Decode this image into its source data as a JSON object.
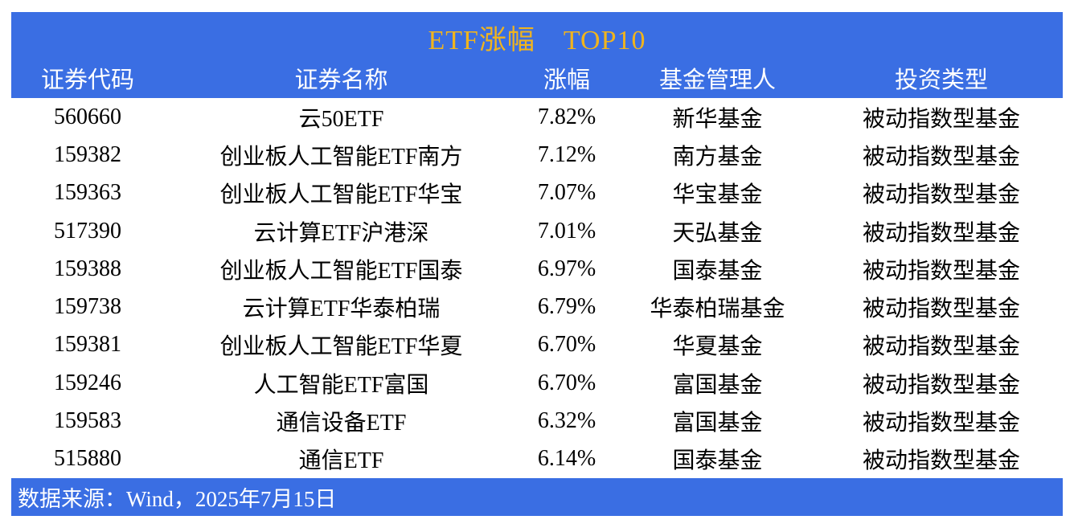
{
  "chart_data": {
    "type": "table",
    "title": "ETF涨幅　TOP10",
    "columns": [
      "证券代码",
      "证券名称",
      "涨幅",
      "基金管理人",
      "投资类型"
    ],
    "rows": [
      [
        "560660",
        "云50ETF",
        "7.82%",
        "新华基金",
        "被动指数型基金"
      ],
      [
        "159382",
        "创业板人工智能ETF南方",
        "7.12%",
        "南方基金",
        "被动指数型基金"
      ],
      [
        "159363",
        "创业板人工智能ETF华宝",
        "7.07%",
        "华宝基金",
        "被动指数型基金"
      ],
      [
        "517390",
        "云计算ETF沪港深",
        "7.01%",
        "天弘基金",
        "被动指数型基金"
      ],
      [
        "159388",
        "创业板人工智能ETF国泰",
        "6.97%",
        "国泰基金",
        "被动指数型基金"
      ],
      [
        "159738",
        "云计算ETF华泰柏瑞",
        "6.79%",
        "华泰柏瑞基金",
        "被动指数型基金"
      ],
      [
        "159381",
        "创业板人工智能ETF华夏",
        "6.70%",
        "华夏基金",
        "被动指数型基金"
      ],
      [
        "159246",
        "人工智能ETF富国",
        "6.70%",
        "富国基金",
        "被动指数型基金"
      ],
      [
        "159583",
        "通信设备ETF",
        "6.32%",
        "富国基金",
        "被动指数型基金"
      ],
      [
        "515880",
        "通信ETF",
        "6.14%",
        "国泰基金",
        "被动指数型基金"
      ]
    ],
    "source_note": "数据来源：Wind，2025年7月15日"
  },
  "colors": {
    "band_blue": "#3a6ee3",
    "title_gold": "#f0b41e",
    "header_text": "#ffffff",
    "body_text": "#000000",
    "background": "#ffffff"
  }
}
